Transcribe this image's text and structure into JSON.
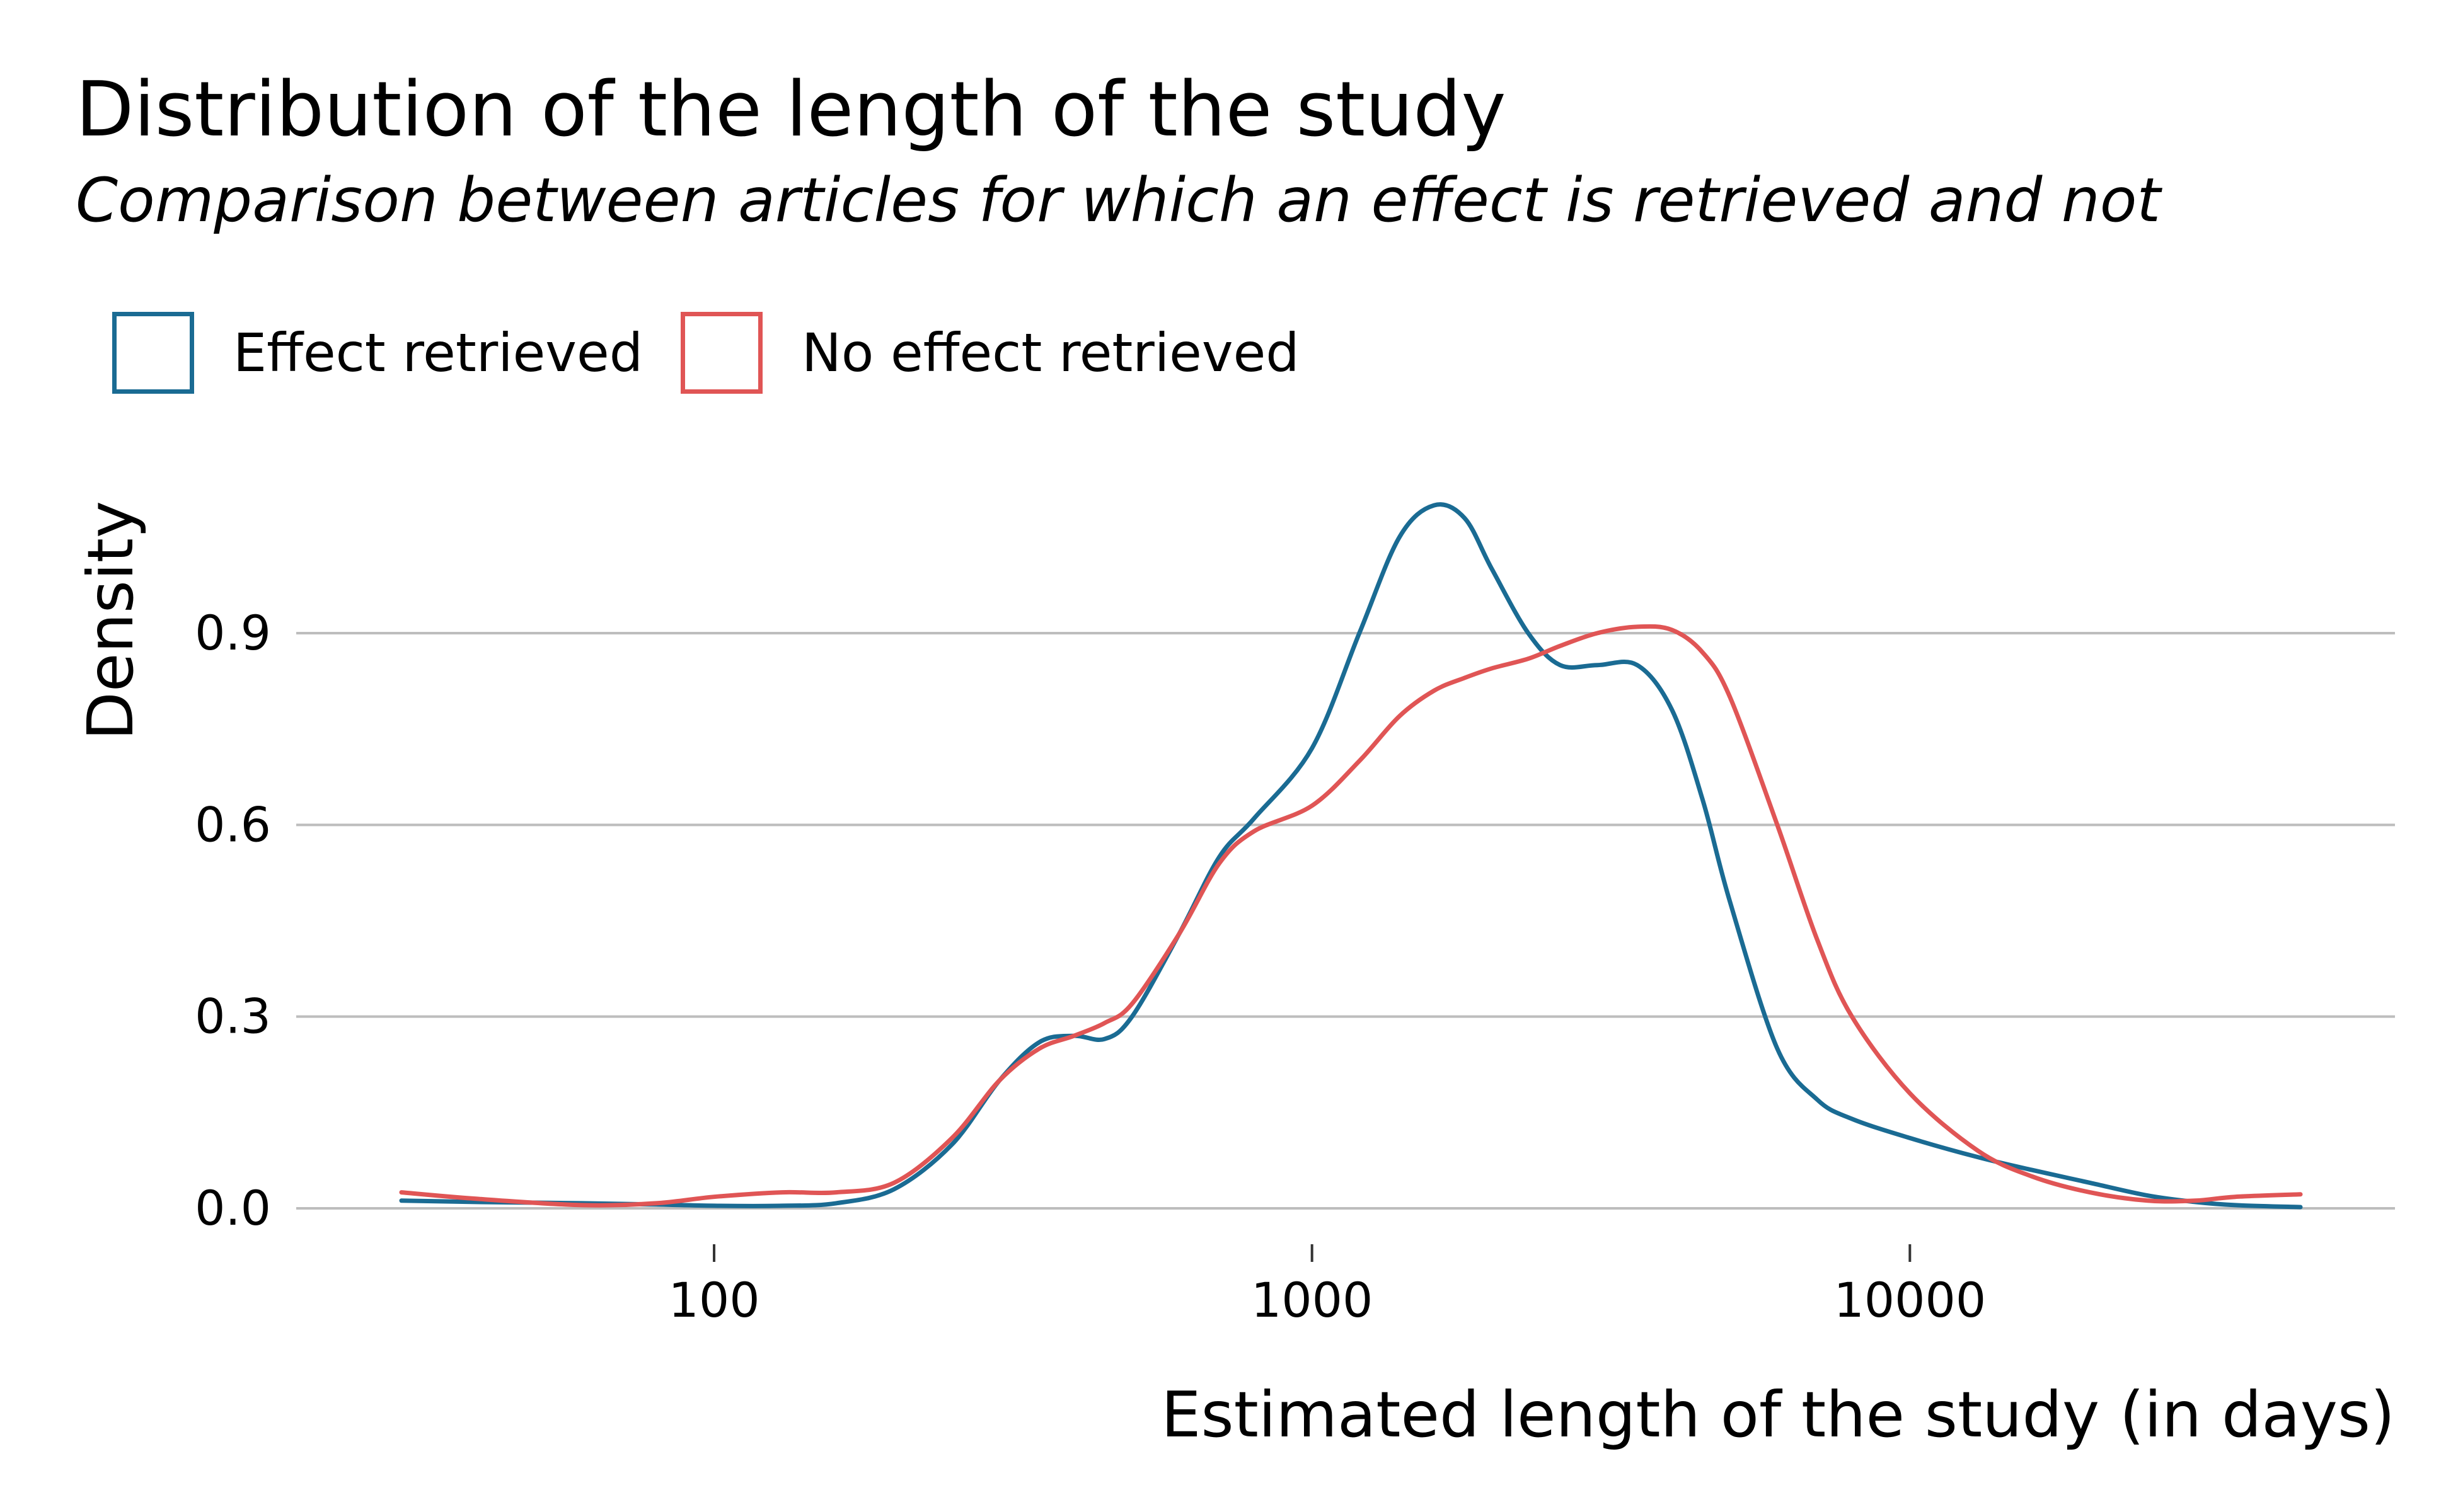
{
  "chart_data": {
    "type": "line",
    "title": "Distribution of the length of the study",
    "subtitle": "Comparison between articles for which an effect is retrieved and not",
    "xlabel": "Estimated length of the study (in days)",
    "ylabel": "Density",
    "x_scale": "log10",
    "xlim": [
      30,
      45000
    ],
    "ylim": [
      0,
      1.1
    ],
    "x_ticks": [
      {
        "value": 100,
        "label": "100"
      },
      {
        "value": 1000,
        "label": "1000"
      },
      {
        "value": 10000,
        "label": "10000"
      }
    ],
    "y_ticks": [
      {
        "value": 0,
        "label": "0.0"
      },
      {
        "value": 0.3,
        "label": "0.3"
      },
      {
        "value": 0.6,
        "label": "0.6"
      },
      {
        "value": 0.9,
        "label": "0.9"
      }
    ],
    "grid": "horizontal",
    "legend_position": "top-left",
    "series": [
      {
        "name": "Effect retrieved",
        "color": "#1a6b93",
        "x": [
          30,
          40,
          60,
          80,
          100,
          130,
          160,
          200,
          250,
          300,
          350,
          400,
          450,
          500,
          600,
          700,
          800,
          1000,
          1200,
          1400,
          1600,
          1800,
          2000,
          2300,
          2600,
          3000,
          3500,
          4000,
          4500,
          5000,
          6000,
          7000,
          8000,
          10000,
          13000,
          16000,
          20000,
          25000,
          30000,
          35000,
          45000
        ],
        "y": [
          0.012,
          0.01,
          0.008,
          0.006,
          0.004,
          0.004,
          0.008,
          0.03,
          0.1,
          0.2,
          0.26,
          0.27,
          0.265,
          0.3,
          0.43,
          0.55,
          0.61,
          0.72,
          0.9,
          1.05,
          1.1,
          1.08,
          1.0,
          0.9,
          0.85,
          0.85,
          0.85,
          0.78,
          0.64,
          0.48,
          0.25,
          0.17,
          0.14,
          0.11,
          0.08,
          0.06,
          0.04,
          0.02,
          0.01,
          0.005,
          0.002
        ]
      },
      {
        "name": "No effect retrieved",
        "color": "#e05555",
        "x": [
          30,
          40,
          60,
          80,
          100,
          130,
          160,
          200,
          250,
          300,
          350,
          400,
          450,
          500,
          600,
          700,
          800,
          1000,
          1200,
          1400,
          1600,
          1800,
          2000,
          2300,
          2600,
          3000,
          3500,
          4000,
          4500,
          5000,
          6000,
          7000,
          8000,
          10000,
          13000,
          16000,
          20000,
          25000,
          30000,
          35000,
          45000
        ],
        "y": [
          0.025,
          0.015,
          0.005,
          0.008,
          0.018,
          0.025,
          0.025,
          0.04,
          0.11,
          0.2,
          0.25,
          0.27,
          0.29,
          0.32,
          0.43,
          0.54,
          0.59,
          0.63,
          0.7,
          0.77,
          0.81,
          0.83,
          0.845,
          0.86,
          0.88,
          0.9,
          0.91,
          0.905,
          0.87,
          0.8,
          0.6,
          0.42,
          0.3,
          0.18,
          0.09,
          0.05,
          0.025,
          0.012,
          0.012,
          0.018,
          0.022
        ]
      }
    ]
  }
}
